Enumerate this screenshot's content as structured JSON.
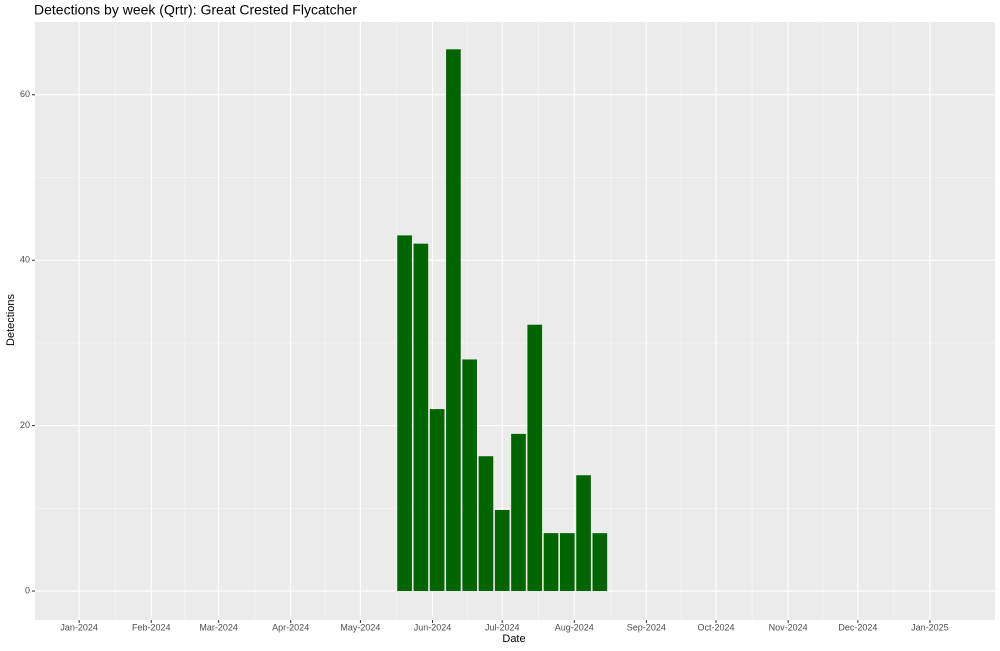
{
  "chart_data": {
    "type": "bar",
    "title": "Detections by week (Qrtr): Great Crested Flycatcher",
    "x_label": "Date",
    "y_label": "Detections",
    "x": [
      "2024-05-20",
      "2024-05-27",
      "2024-06-03",
      "2024-06-10",
      "2024-06-17",
      "2024-06-24",
      "2024-07-01",
      "2024-07-08",
      "2024-07-15",
      "2024-07-22",
      "2024-07-29",
      "2024-08-05",
      "2024-08-12"
    ],
    "values": [
      43,
      42,
      22,
      65.5,
      28,
      16.3,
      9.8,
      19,
      32.2,
      7,
      7,
      14,
      7
    ],
    "color": "#006400",
    "xlim": [
      "2023-12-13",
      "2025-01-29"
    ],
    "xticks": [
      {
        "value": "2024-01-01",
        "label": "Jan-2024"
      },
      {
        "value": "2024-02-01",
        "label": "Feb-2024"
      },
      {
        "value": "2024-03-01",
        "label": "Mar-2024"
      },
      {
        "value": "2024-04-01",
        "label": "Apr-2024"
      },
      {
        "value": "2024-05-01",
        "label": "May-2024"
      },
      {
        "value": "2024-06-01",
        "label": "Jun-2024"
      },
      {
        "value": "2024-07-01",
        "label": "Jul-2024"
      },
      {
        "value": "2024-08-01",
        "label": "Aug-2024"
      },
      {
        "value": "2024-09-01",
        "label": "Sep-2024"
      },
      {
        "value": "2024-10-01",
        "label": "Oct-2024"
      },
      {
        "value": "2024-11-01",
        "label": "Nov-2024"
      },
      {
        "value": "2024-12-01",
        "label": "Dec-2024"
      },
      {
        "value": "2025-01-01",
        "label": "Jan-2025"
      }
    ],
    "ylim": [
      -3.5,
      68.8
    ],
    "yticks": [
      0,
      20,
      40,
      60
    ],
    "grid": true
  }
}
